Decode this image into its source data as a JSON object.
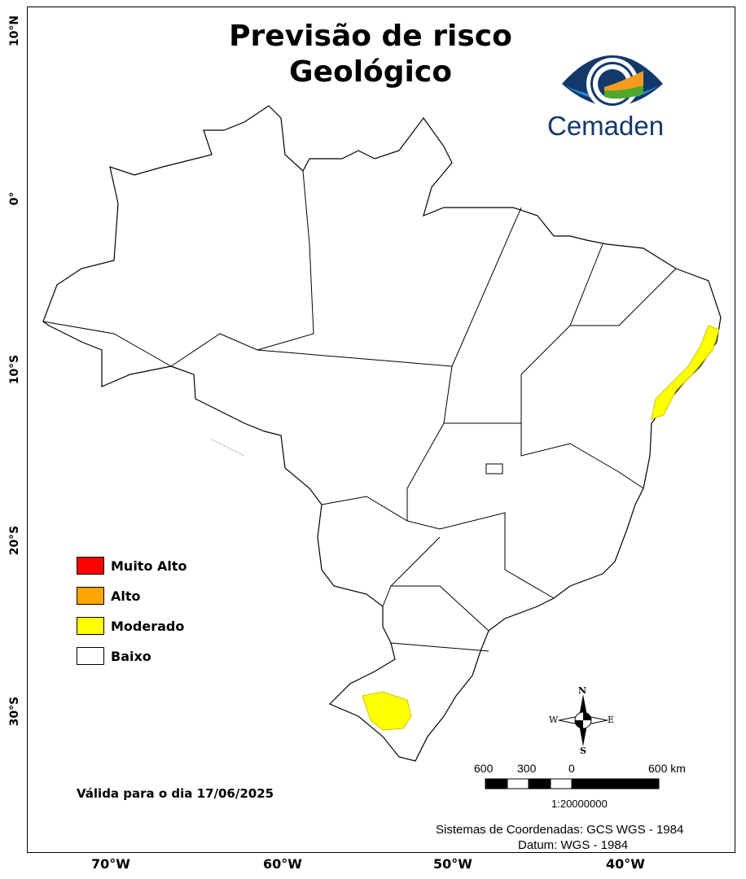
{
  "title": {
    "line1": "Previsão de risco",
    "line2": "Geológico"
  },
  "logo": {
    "text": "Cemaden",
    "colors": {
      "dark": "#13396b",
      "light": "#2a8fdc",
      "orange": "#f39c1f",
      "green": "#4ea82a"
    }
  },
  "axes": {
    "lat_labels": [
      "10°N",
      "0°",
      "10°S",
      "20°S",
      "30°S"
    ],
    "lon_labels": [
      "70°W",
      "60°W",
      "50°W",
      "40°W"
    ]
  },
  "legend": [
    {
      "label": "Muito Alto",
      "color": "#ff0000"
    },
    {
      "label": "Alto",
      "color": "#ffa500"
    },
    {
      "label": "Moderado",
      "color": "#ffff00"
    },
    {
      "label": "Baixo",
      "color": "#ffffff"
    }
  ],
  "validity": "Válida para o dia 17/06/2025",
  "compass": {
    "n": "N",
    "s": "S",
    "e": "E",
    "w": "W"
  },
  "scalebar": {
    "labels": [
      "600",
      "300",
      "0",
      "600 km"
    ],
    "scale": "1:20000000"
  },
  "crs": {
    "line1": "Sistemas de Coordenadas: GCS WGS - 1984",
    "line2": "Datum: WGS - 1984"
  },
  "highlighted_areas": [
    {
      "region": "Leste da Bahia / Sergipe / Alagoas (litoral)",
      "level": "Moderado"
    },
    {
      "region": "Centro do Rio Grande do Sul",
      "level": "Moderado"
    }
  ]
}
